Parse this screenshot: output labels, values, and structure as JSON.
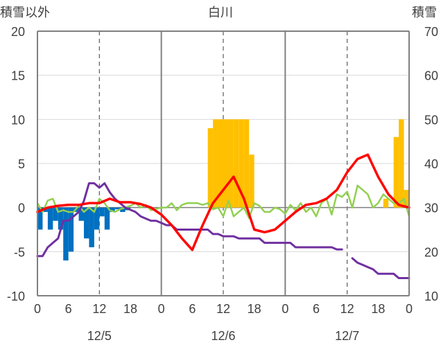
{
  "chart_data": {
    "type": "bar+line",
    "title": "白川",
    "left_axis_label": "積雪以外",
    "right_axis_label": "積雪",
    "left_axis": {
      "min": -10,
      "max": 20,
      "ticks": [
        "20",
        "15",
        "10",
        "5",
        "0",
        "-5",
        "-10"
      ]
    },
    "right_axis": {
      "min": 10,
      "max": 70,
      "ticks": [
        "70",
        "60",
        "50",
        "40",
        "30",
        "20",
        "10"
      ]
    },
    "x_hour_ticks": [
      "0",
      "6",
      "12",
      "18",
      "0",
      "6",
      "12",
      "18",
      "0",
      "6",
      "12",
      "18",
      "0"
    ],
    "x_day_labels": [
      "12/5",
      "12/6",
      "12/7"
    ],
    "grid": "vertical dashed at 12h, solid at day boundaries",
    "colors": {
      "temperature": "#ff0000",
      "humidity_like": "#92d050",
      "snow_depth": "#7030a0",
      "precip_bars": "#ffc000",
      "negative_bars": "#0070c0",
      "axis": "#808080"
    },
    "series": [
      {
        "kind": "bar",
        "axis": "left",
        "color": "#0070c0",
        "x": [
          0,
          1,
          2,
          3,
          4,
          5,
          6,
          7,
          8,
          9,
          10,
          11,
          12,
          13,
          14,
          15,
          16,
          17
        ],
        "values": [
          -2.5,
          -0.5,
          -2.5,
          -1.5,
          -2.5,
          -6,
          -5,
          -0.5,
          -1.5,
          -3.5,
          -4.5,
          -2.5,
          -1,
          -2.5,
          -0.5,
          -0.2,
          -0.5,
          -0.3
        ]
      },
      {
        "kind": "bar",
        "axis": "left",
        "color": "#ffc000",
        "x": [
          33,
          34,
          35,
          36,
          37,
          38,
          39,
          40,
          41,
          42,
          43,
          44,
          45,
          46,
          47,
          48,
          49,
          50,
          51,
          52,
          53,
          54,
          55,
          56,
          57,
          58,
          59,
          60,
          61,
          62,
          63,
          64,
          65,
          66,
          67,
          68,
          69,
          70,
          71
        ],
        "values": [
          9,
          10,
          10,
          10,
          10,
          10,
          10,
          10,
          6,
          0,
          0,
          0,
          0,
          0,
          0,
          0,
          0,
          0,
          0,
          0,
          0,
          0,
          0,
          0,
          0,
          0,
          0,
          0,
          0,
          0,
          0,
          0,
          0,
          0,
          1,
          0,
          8,
          10,
          2
        ]
      },
      {
        "kind": "line",
        "axis": "left",
        "color": "#ff0000",
        "x": [
          0,
          2,
          4,
          6,
          8,
          10,
          12,
          14,
          16,
          18,
          20,
          22,
          24,
          26,
          28,
          30,
          32,
          34,
          36,
          38,
          40,
          42,
          44,
          46,
          48,
          50,
          52,
          54,
          56,
          58,
          60,
          62,
          64,
          66,
          68,
          70,
          72
        ],
        "values": [
          -0.5,
          0,
          0.2,
          0.3,
          0.3,
          0.5,
          0.5,
          1,
          0.6,
          0.6,
          0.4,
          0,
          -0.8,
          -2,
          -3.5,
          -4.8,
          -2,
          0.5,
          2,
          3.5,
          1,
          -2.5,
          -2.8,
          -2.5,
          -1.5,
          -0.5,
          0.3,
          0.5,
          1,
          2,
          4,
          5.5,
          6,
          3.5,
          1.5,
          0.3,
          0
        ]
      },
      {
        "kind": "line",
        "axis": "left",
        "color": "#92d050",
        "x": [
          0,
          1,
          2,
          3,
          4,
          5,
          6,
          7,
          8,
          9,
          10,
          11,
          12,
          13,
          14,
          15,
          16,
          17,
          18,
          19,
          20,
          21,
          22,
          24,
          25,
          26,
          27,
          28,
          29,
          30,
          31,
          32,
          33,
          34,
          35,
          36,
          37,
          38,
          39,
          40,
          41,
          42,
          43,
          44,
          45,
          46,
          47,
          48,
          49,
          50,
          51,
          52,
          53,
          54,
          55,
          56,
          57,
          58,
          59,
          60,
          61,
          62,
          63,
          64,
          65,
          66,
          67,
          68,
          69,
          70,
          71,
          72
        ],
        "values": [
          0.5,
          -0.5,
          0.8,
          1,
          -0.5,
          -0.3,
          -0.5,
          -0.5,
          0.2,
          -0.5,
          0,
          -0.5,
          1,
          0.5,
          -0.3,
          -0.5,
          -0.2,
          0,
          0.2,
          0.5,
          0,
          0.3,
          -0.3,
          0,
          0,
          0.5,
          -0.3,
          0.3,
          0.5,
          0.5,
          0.5,
          0.3,
          0.5,
          -0.2,
          0,
          -1,
          0.8,
          -1,
          -0.5,
          0,
          -1.2,
          0.5,
          0.2,
          -0.5,
          -0.5,
          0,
          -0.2,
          -0.7,
          0.3,
          -0.3,
          0.5,
          -0.5,
          0,
          -1,
          0.5,
          1,
          -0.8,
          1.5,
          1.2,
          1.8,
          0,
          2.5,
          2,
          1.5,
          0,
          0.5,
          1.5,
          1,
          0.5,
          0.5,
          1,
          -1
        ]
      },
      {
        "kind": "line",
        "axis": "right",
        "color": "#7030a0",
        "x": [
          0,
          1,
          2,
          3,
          4,
          5,
          6,
          7,
          8,
          9,
          10,
          11,
          12,
          13,
          14,
          15,
          16,
          17,
          18,
          19,
          20,
          21,
          22,
          23,
          24,
          25,
          26,
          27,
          28,
          29,
          30,
          31,
          32,
          33,
          34,
          35,
          36,
          37,
          38,
          39,
          40,
          41,
          42,
          43,
          44,
          45,
          46,
          47,
          48,
          49,
          50,
          51,
          52,
          53,
          54,
          55,
          56,
          57,
          58,
          59
        ],
        "values": [
          19,
          19,
          21,
          22,
          23,
          27,
          27,
          28,
          29,
          31.5,
          35.5,
          35.5,
          34.5,
          35.5,
          33.5,
          32,
          31,
          30,
          29.5,
          29,
          28,
          27.5,
          27,
          27,
          26.5,
          26,
          26,
          25,
          25,
          25,
          25,
          25,
          25,
          25,
          24,
          24,
          23.5,
          23.5,
          23.5,
          23,
          23,
          23,
          23,
          23,
          22,
          22,
          22,
          22,
          22,
          22,
          21,
          21,
          21,
          21,
          21,
          21,
          21,
          21,
          20.5,
          20.5
        ]
      },
      {
        "kind": "line",
        "axis": "right",
        "color": "#7030a0",
        "x": [
          61,
          62,
          63,
          64,
          65,
          66,
          67,
          68,
          69,
          70,
          71,
          72
        ],
        "values": [
          18.5,
          17.5,
          17,
          16.5,
          16,
          15,
          15,
          15,
          15,
          14,
          14,
          14
        ]
      }
    ]
  }
}
